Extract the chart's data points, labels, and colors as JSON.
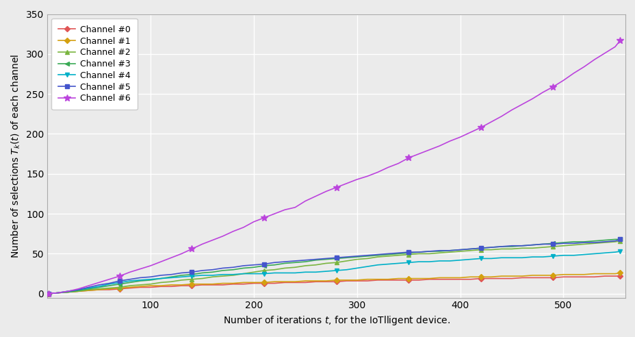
{
  "title": "",
  "xlabel": "Number of iterations $t$, for the IoTlligent device.",
  "ylabel": "Number of selections $T_k(t)$ of each channel",
  "xlim": [
    0,
    560
  ],
  "ylim": [
    -5,
    350
  ],
  "yticks": [
    0,
    50,
    100,
    150,
    200,
    250,
    300,
    350
  ],
  "xticks": [
    100,
    200,
    300,
    400,
    500
  ],
  "channels": [
    {
      "label": "Channel #0",
      "color": "#e05555",
      "marker": "D",
      "markersize": 4,
      "linewidth": 1.2,
      "x": [
        1,
        10,
        20,
        30,
        40,
        50,
        60,
        70,
        80,
        90,
        100,
        110,
        120,
        130,
        140,
        150,
        160,
        170,
        180,
        190,
        200,
        210,
        220,
        230,
        240,
        250,
        260,
        270,
        280,
        290,
        300,
        310,
        320,
        330,
        340,
        350,
        360,
        370,
        380,
        390,
        400,
        410,
        420,
        430,
        440,
        450,
        460,
        470,
        480,
        490,
        500,
        510,
        520,
        530,
        540,
        550,
        555
      ],
      "y": [
        0,
        1,
        2,
        3,
        4,
        5,
        5,
        6,
        7,
        8,
        8,
        9,
        9,
        10,
        10,
        11,
        11,
        11,
        12,
        12,
        13,
        13,
        13,
        14,
        14,
        14,
        15,
        15,
        15,
        16,
        16,
        16,
        17,
        17,
        17,
        17,
        17,
        18,
        18,
        18,
        18,
        18,
        19,
        19,
        19,
        19,
        20,
        20,
        20,
        20,
        21,
        21,
        21,
        21,
        22,
        22,
        22
      ]
    },
    {
      "label": "Channel #1",
      "color": "#d4a010",
      "marker": "D",
      "markersize": 4,
      "linewidth": 1.2,
      "x": [
        1,
        10,
        20,
        30,
        40,
        50,
        60,
        70,
        80,
        90,
        100,
        110,
        120,
        130,
        140,
        150,
        160,
        170,
        180,
        190,
        200,
        210,
        220,
        230,
        240,
        250,
        260,
        270,
        280,
        290,
        300,
        310,
        320,
        330,
        340,
        350,
        360,
        370,
        380,
        390,
        400,
        410,
        420,
        430,
        440,
        450,
        460,
        470,
        480,
        490,
        500,
        510,
        520,
        530,
        540,
        550,
        555
      ],
      "y": [
        0,
        1,
        2,
        3,
        4,
        5,
        6,
        7,
        8,
        9,
        10,
        10,
        11,
        11,
        12,
        12,
        12,
        13,
        13,
        14,
        14,
        14,
        15,
        15,
        15,
        16,
        16,
        16,
        17,
        17,
        17,
        18,
        18,
        18,
        19,
        19,
        19,
        19,
        20,
        20,
        20,
        21,
        21,
        21,
        22,
        22,
        22,
        23,
        23,
        23,
        24,
        24,
        24,
        25,
        25,
        25,
        26
      ]
    },
    {
      "label": "Channel #2",
      "color": "#7ab540",
      "marker": "^",
      "markersize": 5,
      "linewidth": 1.2,
      "x": [
        1,
        10,
        20,
        30,
        40,
        50,
        60,
        70,
        80,
        90,
        100,
        110,
        120,
        130,
        140,
        150,
        160,
        170,
        180,
        190,
        200,
        210,
        220,
        230,
        240,
        250,
        260,
        270,
        280,
        290,
        300,
        310,
        320,
        330,
        340,
        350,
        360,
        370,
        380,
        390,
        400,
        410,
        420,
        430,
        440,
        450,
        460,
        470,
        480,
        490,
        500,
        510,
        520,
        530,
        540,
        550,
        555
      ],
      "y": [
        0,
        1,
        2,
        3,
        5,
        6,
        7,
        8,
        10,
        11,
        12,
        14,
        15,
        17,
        18,
        19,
        21,
        22,
        23,
        25,
        27,
        29,
        30,
        32,
        33,
        35,
        36,
        38,
        39,
        41,
        43,
        44,
        46,
        47,
        48,
        49,
        50,
        50,
        51,
        52,
        53,
        54,
        55,
        55,
        56,
        56,
        57,
        57,
        58,
        59,
        60,
        61,
        62,
        63,
        64,
        65,
        66
      ]
    },
    {
      "label": "Channel #3",
      "color": "#3aaa55",
      "marker": "<",
      "markersize": 5,
      "linewidth": 1.2,
      "x": [
        1,
        10,
        20,
        30,
        40,
        50,
        60,
        70,
        80,
        90,
        100,
        110,
        120,
        130,
        140,
        150,
        160,
        170,
        180,
        190,
        200,
        210,
        220,
        230,
        240,
        250,
        260,
        270,
        280,
        290,
        300,
        310,
        320,
        330,
        340,
        350,
        360,
        370,
        380,
        390,
        400,
        410,
        420,
        430,
        440,
        450,
        460,
        470,
        480,
        490,
        500,
        510,
        520,
        530,
        540,
        550,
        555
      ],
      "y": [
        0,
        1,
        2,
        4,
        6,
        8,
        10,
        12,
        14,
        16,
        17,
        19,
        21,
        23,
        24,
        26,
        27,
        29,
        30,
        32,
        33,
        35,
        36,
        38,
        39,
        40,
        42,
        43,
        44,
        45,
        46,
        47,
        48,
        49,
        50,
        51,
        52,
        53,
        53,
        54,
        55,
        56,
        57,
        58,
        59,
        59,
        60,
        61,
        62,
        63,
        64,
        65,
        65,
        66,
        67,
        68,
        68
      ]
    },
    {
      "label": "Channel #4",
      "color": "#00b0c8",
      "marker": "v",
      "markersize": 5,
      "linewidth": 1.2,
      "x": [
        1,
        10,
        20,
        30,
        40,
        50,
        60,
        70,
        80,
        90,
        100,
        110,
        120,
        130,
        140,
        150,
        160,
        170,
        180,
        190,
        200,
        210,
        220,
        230,
        240,
        250,
        260,
        270,
        280,
        290,
        300,
        310,
        320,
        330,
        340,
        350,
        360,
        370,
        380,
        390,
        400,
        410,
        420,
        430,
        440,
        450,
        460,
        470,
        480,
        490,
        500,
        510,
        520,
        530,
        540,
        550,
        555
      ],
      "y": [
        0,
        1,
        3,
        5,
        7,
        9,
        12,
        14,
        16,
        17,
        18,
        19,
        20,
        21,
        22,
        23,
        23,
        24,
        24,
        25,
        25,
        25,
        26,
        26,
        26,
        27,
        27,
        28,
        29,
        30,
        32,
        34,
        36,
        37,
        38,
        39,
        40,
        40,
        41,
        41,
        42,
        43,
        44,
        44,
        45,
        45,
        45,
        46,
        46,
        47,
        48,
        48,
        49,
        50,
        51,
        52,
        53
      ]
    },
    {
      "label": "Channel #5",
      "color": "#4455cc",
      "marker": "s",
      "markersize": 4,
      "linewidth": 1.2,
      "x": [
        1,
        10,
        20,
        30,
        40,
        50,
        60,
        70,
        80,
        90,
        100,
        110,
        120,
        130,
        140,
        150,
        160,
        170,
        180,
        190,
        200,
        210,
        220,
        230,
        240,
        250,
        260,
        270,
        280,
        290,
        300,
        310,
        320,
        330,
        340,
        350,
        360,
        370,
        380,
        390,
        400,
        410,
        420,
        430,
        440,
        450,
        460,
        470,
        480,
        490,
        500,
        510,
        520,
        530,
        540,
        550,
        555
      ],
      "y": [
        0,
        1,
        3,
        5,
        8,
        11,
        13,
        16,
        18,
        20,
        21,
        23,
        24,
        26,
        27,
        29,
        30,
        32,
        33,
        35,
        36,
        37,
        39,
        40,
        41,
        42,
        43,
        44,
        45,
        46,
        47,
        48,
        49,
        50,
        51,
        52,
        52,
        53,
        54,
        54,
        55,
        56,
        57,
        58,
        59,
        60,
        60,
        61,
        62,
        62,
        63,
        63,
        64,
        64,
        65,
        66,
        68
      ]
    },
    {
      "label": "Channel #6",
      "color": "#bb44dd",
      "marker": "*",
      "markersize": 7,
      "linewidth": 1.2,
      "x": [
        1,
        10,
        20,
        30,
        40,
        50,
        60,
        70,
        80,
        90,
        100,
        110,
        120,
        130,
        140,
        150,
        160,
        170,
        180,
        190,
        200,
        210,
        220,
        230,
        240,
        250,
        260,
        270,
        280,
        290,
        300,
        310,
        320,
        330,
        340,
        350,
        360,
        370,
        380,
        390,
        400,
        410,
        420,
        430,
        440,
        450,
        460,
        470,
        480,
        490,
        500,
        510,
        520,
        530,
        540,
        550,
        555
      ],
      "y": [
        0,
        1,
        3,
        6,
        10,
        14,
        18,
        22,
        27,
        31,
        35,
        40,
        45,
        50,
        56,
        62,
        67,
        72,
        78,
        83,
        90,
        95,
        100,
        105,
        108,
        116,
        122,
        128,
        133,
        138,
        143,
        147,
        152,
        158,
        163,
        170,
        175,
        180,
        185,
        191,
        196,
        202,
        208,
        215,
        222,
        230,
        237,
        244,
        252,
        259,
        267,
        276,
        284,
        293,
        301,
        309,
        317
      ]
    }
  ],
  "background_color": "#ebebeb",
  "grid_color": "#ffffff",
  "legend_loc": "upper left",
  "figsize": [
    9.29,
    4.92
  ],
  "dpi": 100
}
